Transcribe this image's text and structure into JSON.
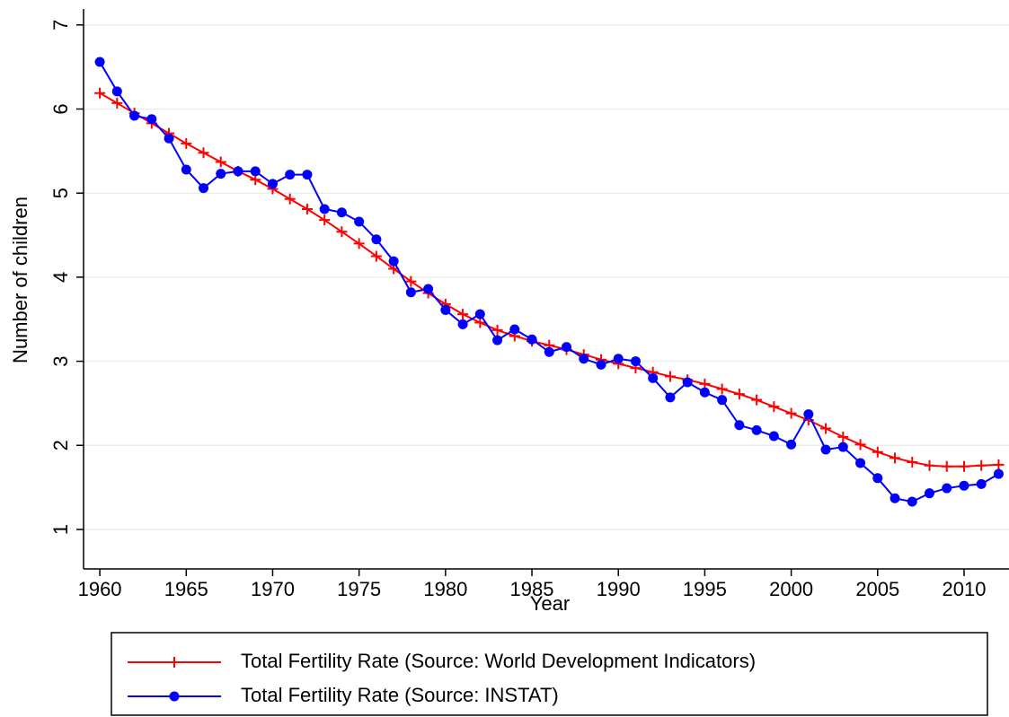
{
  "chart_data": {
    "type": "line",
    "x_label": "Year",
    "y_label": "Number of children",
    "x": [
      1960,
      1961,
      1962,
      1963,
      1964,
      1965,
      1966,
      1967,
      1968,
      1969,
      1970,
      1971,
      1972,
      1973,
      1974,
      1975,
      1976,
      1977,
      1978,
      1979,
      1980,
      1981,
      1982,
      1983,
      1984,
      1985,
      1986,
      1987,
      1988,
      1989,
      1990,
      1991,
      1992,
      1993,
      1994,
      1995,
      1996,
      1997,
      1998,
      1999,
      2000,
      2001,
      2002,
      2003,
      2004,
      2005,
      2006,
      2007,
      2008,
      2009,
      2010,
      2011,
      2012
    ],
    "series": [
      {
        "name": "Total Fertility Rate (Source: World Development Indicators)",
        "color": "#ff0000",
        "marker": "plus",
        "values": [
          6.19,
          6.07,
          5.95,
          5.83,
          5.71,
          5.59,
          5.48,
          5.37,
          5.26,
          5.16,
          5.05,
          4.93,
          4.81,
          4.68,
          4.54,
          4.4,
          4.25,
          4.1,
          3.95,
          3.81,
          3.68,
          3.56,
          3.46,
          3.37,
          3.3,
          3.24,
          3.19,
          3.14,
          3.08,
          3.02,
          2.97,
          2.92,
          2.87,
          2.82,
          2.78,
          2.73,
          2.67,
          2.61,
          2.54,
          2.46,
          2.38,
          2.3,
          2.2,
          2.1,
          2.01,
          1.92,
          1.85,
          1.8,
          1.76,
          1.75,
          1.75,
          1.76,
          1.77
        ]
      },
      {
        "name": "Total Fertility Rate (Source: INSTAT)",
        "color": "#0000ff",
        "marker": "circle",
        "values": [
          6.56,
          6.21,
          5.92,
          5.88,
          5.65,
          5.28,
          5.06,
          5.23,
          5.26,
          5.26,
          5.11,
          5.22,
          5.22,
          4.81,
          4.77,
          4.66,
          4.45,
          4.19,
          3.82,
          3.86,
          3.61,
          3.44,
          3.56,
          3.25,
          3.38,
          3.26,
          3.11,
          3.17,
          3.03,
          2.96,
          3.03,
          3.0,
          2.8,
          2.57,
          2.75,
          2.63,
          2.54,
          2.24,
          2.18,
          2.11,
          2.01,
          2.37,
          1.95,
          1.98,
          1.79,
          1.61,
          1.37,
          1.33,
          1.43,
          1.49,
          1.52,
          1.54,
          1.66
        ]
      }
    ],
    "xlim": [
      1959.06,
      2012.6
    ],
    "ylim": [
      0.53,
      7.19
    ],
    "xticks": [
      1960,
      1965,
      1970,
      1975,
      1980,
      1985,
      1990,
      1995,
      2000,
      2005,
      2010
    ],
    "yticks": [
      1,
      2,
      3,
      4,
      5,
      6,
      7
    ],
    "grid": true
  }
}
